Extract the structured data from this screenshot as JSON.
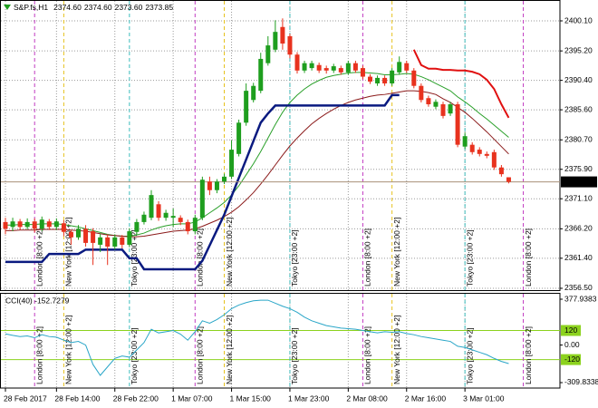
{
  "chart_data": [
    {
      "type": "candlestick",
      "title": "S&P.fs,H1",
      "header_values": [
        "2374.60",
        "2374.60",
        "2373.60",
        "2373.85"
      ],
      "categories": [
        "28 Feb 2017",
        null,
        null,
        null,
        null,
        null,
        null,
        "28 Feb 14:00",
        null,
        null,
        null,
        null,
        null,
        null,
        null,
        "28 Feb 22:00",
        null,
        null,
        null,
        null,
        null,
        null,
        null,
        "1 Mar 07:00",
        null,
        null,
        null,
        null,
        null,
        null,
        null,
        "1 Mar 15:00",
        null,
        null,
        null,
        null,
        null,
        null,
        null,
        "1 Mar 23:00",
        null,
        null,
        null,
        null,
        null,
        null,
        null,
        "2 Mar 08:00",
        null,
        null,
        null,
        null,
        null,
        null,
        null,
        "2 Mar 16:00",
        null,
        null,
        null,
        null,
        null,
        null,
        null,
        "3 Mar 01:00",
        null,
        null,
        null,
        null,
        null,
        null,
        null,
        null,
        null,
        null,
        null,
        null
      ],
      "open": [
        2367.3,
        2366.5,
        2367.4,
        2366.5,
        2367.4,
        2366.2,
        2367.4,
        2366.5,
        2367.1,
        2365.7,
        2364.8,
        2366.2,
        2365.8,
        2363.6,
        2364.8,
        2363.3,
        2364.8,
        2363.6,
        2365.7,
        2367.3,
        2368.0,
        2370.2,
        2368.0,
        2368.0,
        2368.0,
        2367.3,
        2365.8,
        2368.0,
        2373.9,
        2372.5,
        2373.9,
        2374.7,
        2378.4,
        2383.5,
        2387.2,
        2388.7,
        2393.2,
        2395.4,
        2399.1,
        2397.6,
        2394.6,
        2392.0,
        2392.4,
        2392.9,
        2392.4,
        2392.0,
        2392.4,
        2391.7,
        2393.2,
        2392.4,
        2391.0,
        2389.9,
        2390.8,
        2389.9,
        2391.7,
        2393.2,
        2392.0,
        2389.5,
        2387.5,
        2386.1,
        2386.5,
        2385.0,
        2386.5,
        2379.6,
        2379.9,
        2379.1,
        2378.4,
        2378.7,
        2376.2,
        2374.6,
        null,
        null,
        null,
        null,
        null,
        null
      ],
      "high": [
        2368.0,
        2368.0,
        2367.8,
        2367.9,
        2367.9,
        2368.2,
        2367.8,
        2367.9,
        2367.6,
        2366.0,
        2366.8,
        2366.8,
        2366.3,
        2365.4,
        2365.3,
        2365.3,
        2365.2,
        2366.3,
        2367.8,
        2369.0,
        2372.5,
        2370.7,
        2369.3,
        2369.5,
        2368.4,
        2367.7,
        2368.5,
        2374.7,
        2374.7,
        2374.3,
        2375.2,
        2380.6,
        2384.0,
        2389.9,
        2390.0,
        2394.9,
        2397.6,
        2400.2,
        2400.5,
        2398.0,
        2395.0,
        2393.6,
        2393.6,
        2393.3,
        2392.8,
        2393.1,
        2392.8,
        2393.6,
        2393.6,
        2392.8,
        2391.4,
        2391.2,
        2391.2,
        2392.4,
        2394.3,
        2393.6,
        2392.4,
        2389.9,
        2387.9,
        2387.3,
        2386.9,
        2386.9,
        2386.9,
        2381.9,
        2380.3,
        2379.5,
        2378.8,
        2379.1,
        2376.6,
        2374.6,
        null,
        null,
        null,
        null,
        null,
        null
      ],
      "low": [
        2365.3,
        2365.8,
        2366.0,
        2366.1,
        2365.6,
        2365.8,
        2366.0,
        2366.0,
        2365.0,
        2363.6,
        2364.4,
        2363.3,
        2360.3,
        2362.4,
        2360.3,
        2362.8,
        2363.0,
        2363.2,
        2365.2,
        2366.9,
        2367.6,
        2367.5,
        2367.5,
        2366.5,
        2366.8,
        2365.3,
        2365.3,
        2367.6,
        2371.7,
        2372.0,
        2373.5,
        2374.3,
        2378.0,
        2383.0,
        2386.8,
        2388.3,
        2392.8,
        2395.0,
        2395.4,
        2394.0,
        2391.5,
        2391.6,
        2392.0,
        2391.6,
        2391.5,
        2391.6,
        2391.3,
        2391.3,
        2391.6,
        2390.6,
        2389.8,
        2389.5,
        2389.5,
        2389.5,
        2391.3,
        2391.6,
        2389.1,
        2386.8,
        2386.1,
        2385.7,
        2384.2,
        2384.6,
        2379.5,
        2379.2,
        2378.3,
        2378.0,
        2377.7,
        2375.8,
        2374.7,
        2373.6,
        null,
        null,
        null,
        null,
        null,
        null
      ],
      "close": [
        2366.2,
        2367.4,
        2366.5,
        2367.3,
        2366.2,
        2367.7,
        2366.5,
        2367.4,
        2365.7,
        2364.8,
        2366.2,
        2363.9,
        2363.9,
        2364.8,
        2363.3,
        2364.8,
        2363.6,
        2365.8,
        2367.3,
        2368.5,
        2371.7,
        2368.0,
        2368.8,
        2368.3,
        2367.3,
        2365.8,
        2368.0,
        2374.2,
        2372.5,
        2373.9,
        2374.7,
        2379.1,
        2383.5,
        2388.7,
        2389.5,
        2393.9,
        2396.1,
        2398.3,
        2396.4,
        2394.6,
        2392.0,
        2393.2,
        2393.2,
        2392.0,
        2392.0,
        2392.7,
        2391.7,
        2393.2,
        2392.0,
        2391.0,
        2390.2,
        2390.8,
        2389.9,
        2392.0,
        2393.4,
        2392.0,
        2389.5,
        2387.2,
        2386.5,
        2386.9,
        2384.6,
        2386.5,
        2379.9,
        2381.3,
        2378.7,
        2378.4,
        2378.1,
        2376.2,
        2375.1,
        2373.85,
        null,
        null,
        null,
        null,
        null,
        null
      ],
      "bull_color": "#1e9e1e",
      "bear_color": "#e8321e",
      "series": [
        {
          "color": "#2aa02a",
          "values": [
            2366.8,
            2366.8,
            2366.9,
            2366.9,
            2366.9,
            2367.0,
            2367.0,
            2367.0,
            2366.9,
            2366.7,
            2366.5,
            2366.2,
            2365.9,
            2365.6,
            2365.3,
            2365.1,
            2365.0,
            2365.0,
            2365.2,
            2365.5,
            2366.0,
            2366.4,
            2366.7,
            2366.9,
            2367.0,
            2367.0,
            2367.3,
            2368.0,
            2368.8,
            2369.6,
            2370.5,
            2371.7,
            2373.2,
            2375.0,
            2376.8,
            2378.8,
            2381.0,
            2383.2,
            2385.2,
            2386.8,
            2388.0,
            2389.0,
            2389.8,
            2390.4,
            2390.9,
            2391.2,
            2391.4,
            2391.6,
            2391.7,
            2391.7,
            2391.6,
            2391.5,
            2391.3,
            2391.3,
            2391.4,
            2391.5,
            2391.4,
            2391.0,
            2390.5,
            2389.9,
            2389.3,
            2388.7,
            2387.7,
            2386.9,
            2386.0,
            2385.0,
            2384.1,
            2383.1,
            2382.1,
            2381.1,
            null,
            null,
            null,
            null,
            null,
            null
          ],
          "width": 1
        },
        {
          "color": "#8b1a1a",
          "values": [
            2365.9,
            2365.9,
            2366.0,
            2366.0,
            2366.0,
            2366.1,
            2366.1,
            2366.1,
            2366.1,
            2366.0,
            2365.9,
            2365.8,
            2365.6,
            2365.4,
            2365.2,
            2365.1,
            2365.0,
            2364.9,
            2364.9,
            2365.0,
            2365.2,
            2365.4,
            2365.6,
            2365.8,
            2365.9,
            2366.0,
            2366.2,
            2366.6,
            2367.1,
            2367.6,
            2368.2,
            2368.9,
            2369.8,
            2370.9,
            2372.1,
            2373.5,
            2375.0,
            2376.6,
            2378.2,
            2379.7,
            2381.0,
            2382.2,
            2383.3,
            2384.2,
            2385.0,
            2385.7,
            2386.3,
            2386.8,
            2387.2,
            2387.5,
            2387.8,
            2388.0,
            2388.1,
            2388.3,
            2388.5,
            2388.7,
            2388.7,
            2388.6,
            2388.4,
            2388.1,
            2387.4,
            2386.8,
            2386.0,
            2385.2,
            2384.2,
            2383.1,
            2382.0,
            2380.8,
            2379.6,
            2378.4,
            null,
            null,
            null,
            null,
            null,
            null
          ],
          "width": 1
        },
        {
          "color": "#0a1a80",
          "values": [
            2360.8,
            2360.8,
            2360.8,
            2360.8,
            2360.8,
            2360.8,
            2362.1,
            2362.1,
            2362.1,
            2362.1,
            2362.1,
            2362.8,
            2362.8,
            2362.8,
            2362.8,
            2362.8,
            2362.8,
            2361.4,
            2361.4,
            2359.6,
            2359.6,
            2359.6,
            2359.6,
            2359.6,
            2359.6,
            2359.6,
            2359.6,
            2361.0,
            2363.5,
            2366.0,
            2368.5,
            2371.5,
            2374.5,
            2377.5,
            2380.5,
            2383.5,
            2385.0,
            2386.3,
            2386.3,
            2386.3,
            2386.3,
            2386.3,
            2386.3,
            2386.3,
            2386.3,
            2386.3,
            2386.3,
            2386.3,
            2386.3,
            2386.3,
            2386.3,
            2386.3,
            2386.3,
            2388.0,
            2388.0,
            null,
            null,
            null,
            null,
            null,
            null,
            null,
            null,
            null,
            null,
            null,
            null,
            null,
            null,
            null,
            null,
            null,
            null,
            null,
            null,
            null
          ],
          "width": 2.5
        },
        {
          "color": "#e01010",
          "values": [
            null,
            null,
            null,
            null,
            null,
            null,
            null,
            null,
            null,
            null,
            null,
            null,
            null,
            null,
            null,
            null,
            null,
            null,
            null,
            null,
            null,
            null,
            null,
            null,
            null,
            null,
            null,
            null,
            null,
            null,
            null,
            null,
            null,
            null,
            null,
            null,
            null,
            null,
            null,
            null,
            null,
            null,
            null,
            null,
            null,
            null,
            null,
            null,
            null,
            null,
            null,
            null,
            null,
            null,
            null,
            null,
            2395.4,
            2392.9,
            2392.3,
            2392.3,
            2392.1,
            2392.1,
            2392.0,
            2392.0,
            2391.8,
            2391.4,
            2390.5,
            2389.0,
            2386.5,
            2384.3,
            null,
            null,
            null,
            null,
            null,
            null
          ],
          "width": 2
        }
      ],
      "sessions": [
        {
          "name": "London [8:00 +2]",
          "color": "#c23cc2",
          "at": [
            4,
            26,
            49,
            71
          ]
        },
        {
          "name": "New York [12:00 +2]",
          "color": "#e6c21e",
          "at": [
            8,
            30,
            53
          ]
        },
        {
          "name": "Tokyo [23:00 +2]",
          "color": "#3cbcbc",
          "at": [
            17,
            39,
            63
          ]
        }
      ],
      "current_price": {
        "value": 2373.85,
        "label": "2373.85"
      },
      "ylim": [
        2356.2,
        2403.5
      ],
      "yticks": [
        {
          "value": 2400.1,
          "label": "2400.10"
        },
        {
          "value": 2395.2,
          "label": "2395.20"
        },
        {
          "value": 2390.4,
          "label": "2390.40"
        },
        {
          "value": 2385.6,
          "label": "2385.60"
        },
        {
          "value": 2380.7,
          "label": "2380.70"
        },
        {
          "value": 2375.9,
          "label": "2375.90"
        },
        {
          "value": 2371.1,
          "label": "2371.10"
        },
        {
          "value": 2366.2,
          "label": "2366.20"
        },
        {
          "value": 2361.4,
          "label": "2361.40"
        },
        {
          "value": 2356.5,
          "label": "2356.50"
        }
      ],
      "grid": true
    },
    {
      "type": "line",
      "title": "CCI(40) -152.7279",
      "color": "#2aa6c8",
      "values": [
        92,
        80,
        70,
        75,
        60,
        85,
        70,
        65,
        40,
        20,
        30,
        0,
        -160,
        -250,
        -180,
        -110,
        -90,
        -100,
        -40,
        20,
        130,
        100,
        110,
        120,
        90,
        40,
        110,
        200,
        180,
        210,
        250,
        300,
        330,
        350,
        365,
        370,
        370,
        345,
        320,
        300,
        270,
        230,
        200,
        180,
        160,
        150,
        140,
        135,
        130,
        120,
        110,
        100,
        110,
        105,
        110,
        95,
        85,
        70,
        60,
        50,
        40,
        30,
        -10,
        -20,
        -40,
        -60,
        -80,
        -110,
        -135,
        -152.7279,
        null,
        null,
        null,
        null,
        null,
        null
      ],
      "levels": [
        120,
        -120
      ],
      "level_color": "#8cd21e",
      "ylim": [
        -354.7,
        430.3
      ],
      "yticks": [
        377.9383,
        {
          "value": 0,
          "label": "0.00"
        },
        -309.8338
      ]
    }
  ]
}
